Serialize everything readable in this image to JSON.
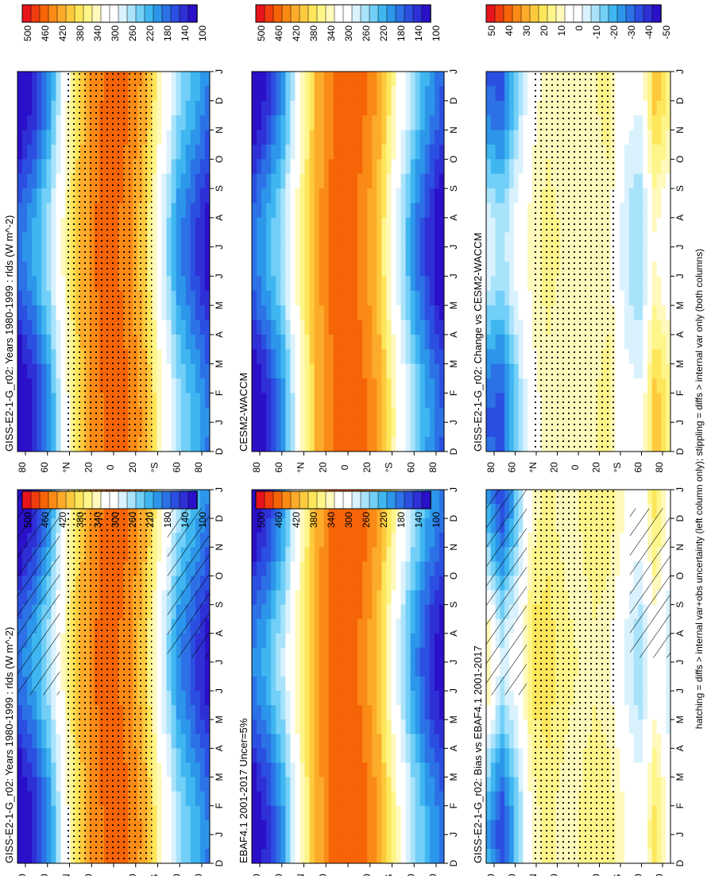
{
  "footer_note": "hatching = diffs > internal var+obs uncertainty (left column only); stippling = diffs > internal var only (both columns)",
  "colorbars": {
    "absolute": {
      "labels": [
        "500",
        "460",
        "420",
        "380",
        "340",
        "300",
        "260",
        "220",
        "180",
        "140",
        "100"
      ],
      "colors": [
        "#e8141c",
        "#f03c0e",
        "#f66408",
        "#fa8a16",
        "#fdab2a",
        "#fdca3e",
        "#fde65a",
        "#fef58a",
        "#fff9bc",
        "#ffffff",
        "#ffffff",
        "#d9f2fd",
        "#a9e3fb",
        "#72cff7",
        "#3fb6f0",
        "#2c96ea",
        "#2c72e6",
        "#2b4fe0",
        "#2f2fd6",
        "#2a10c8"
      ]
    },
    "difference": {
      "labels": [
        "50",
        "40",
        "30",
        "20",
        "10",
        "0",
        "-10",
        "-20",
        "-30",
        "-40",
        "-50"
      ],
      "colors": [
        "#e8141c",
        "#f03c0e",
        "#f66408",
        "#fa8a16",
        "#fdab2a",
        "#fdca3e",
        "#fde65a",
        "#fef58a",
        "#fff9bc",
        "#ffffff",
        "#ffffff",
        "#d9f2fd",
        "#a9e3fb",
        "#72cff7",
        "#3fb6f0",
        "#2c96ea",
        "#2c72e6",
        "#2b4fe0",
        "#2f2fd6",
        "#2a10c8"
      ]
    }
  },
  "chart_data": [
    {
      "type": "heatmap",
      "title": "GISS-E2-1-G_r02: Years 1980-1999 : rlds (W m^-2)",
      "months": [
        "D",
        "J",
        "F",
        "M",
        "A",
        "M",
        "J",
        "J",
        "A",
        "S",
        "O",
        "N",
        "D",
        "J"
      ],
      "lat_ticks": [
        "80",
        "60",
        "°N",
        "20",
        "0",
        "20",
        "°S",
        "60",
        "80"
      ],
      "colorbar": "absolute",
      "hatching": true,
      "stippling": true,
      "lat_profile": [
        120,
        160,
        220,
        320,
        400,
        440,
        450,
        435,
        395,
        300,
        220,
        180,
        140
      ],
      "seasonal_amp": [
        80,
        70,
        55,
        25,
        10,
        5,
        5,
        10,
        25,
        40,
        50,
        55,
        60
      ]
    },
    {
      "type": "heatmap",
      "title": "GISS-E2-1-G_r02: Years 1980-1999 : rlds (W m^-2)",
      "months": [
        "D",
        "J",
        "F",
        "M",
        "A",
        "M",
        "J",
        "J",
        "A",
        "S",
        "O",
        "N",
        "D",
        "J"
      ],
      "lat_ticks": [
        "80",
        "60",
        "°N",
        "20",
        "0",
        "20",
        "°S",
        "60",
        "80"
      ],
      "colorbar": "absolute",
      "hatching": false,
      "stippling": true,
      "lat_profile": [
        120,
        160,
        220,
        320,
        400,
        440,
        450,
        435,
        395,
        300,
        220,
        180,
        140
      ],
      "seasonal_amp": [
        80,
        70,
        55,
        25,
        10,
        5,
        5,
        10,
        25,
        40,
        50,
        55,
        60
      ]
    },
    {
      "type": "heatmap",
      "title": "EBAF4.1 2001-2017 Uncer=5%",
      "months": [
        "D",
        "J",
        "F",
        "M",
        "A",
        "M",
        "J",
        "J",
        "A",
        "S",
        "O",
        "N",
        "D",
        "J"
      ],
      "lat_ticks": [
        "80",
        "60",
        "°N",
        "20",
        "0",
        "20",
        "°S",
        "60",
        "80"
      ],
      "colorbar": "absolute",
      "hatching": false,
      "stippling": false,
      "lat_profile": [
        130,
        170,
        230,
        330,
        410,
        445,
        455,
        440,
        400,
        310,
        230,
        170,
        130
      ],
      "seasonal_amp": [
        75,
        70,
        55,
        25,
        10,
        5,
        5,
        10,
        25,
        40,
        50,
        55,
        60
      ]
    },
    {
      "type": "heatmap",
      "title": "CESM2-WACCM",
      "months": [
        "D",
        "J",
        "F",
        "M",
        "A",
        "M",
        "J",
        "J",
        "A",
        "S",
        "O",
        "N",
        "D",
        "J"
      ],
      "lat_ticks": [
        "80",
        "60",
        "°N",
        "20",
        "0",
        "20",
        "°S",
        "60",
        "80"
      ],
      "colorbar": "absolute",
      "hatching": false,
      "stippling": false,
      "lat_profile": [
        125,
        165,
        225,
        325,
        405,
        442,
        452,
        438,
        398,
        305,
        225,
        165,
        120
      ],
      "seasonal_amp": [
        80,
        70,
        55,
        25,
        10,
        5,
        5,
        10,
        25,
        40,
        50,
        55,
        60
      ]
    },
    {
      "type": "heatmap",
      "title": "GISS-E2-1-G_r02: Bias vs EBAF4.1 2001-2017",
      "months": [
        "D",
        "J",
        "F",
        "M",
        "A",
        "M",
        "J",
        "J",
        "A",
        "S",
        "O",
        "N",
        "D",
        "J"
      ],
      "lat_ticks": [
        "80",
        "60",
        "°N",
        "20",
        "0",
        "20",
        "°S",
        "60",
        "80"
      ],
      "colorbar": "difference",
      "hatching": true,
      "stippling": true,
      "lat_profile": [
        -5,
        -25,
        -10,
        12,
        15,
        10,
        8,
        12,
        10,
        0,
        -8,
        10,
        -5
      ],
      "seasonal_amp": [
        30,
        25,
        15,
        8,
        5,
        3,
        3,
        5,
        5,
        8,
        10,
        12,
        10
      ]
    },
    {
      "type": "heatmap",
      "title": "GISS-E2-1-G_r02: Change vs CESM2-WACCM",
      "months": [
        "D",
        "J",
        "F",
        "M",
        "A",
        "M",
        "J",
        "J",
        "A",
        "S",
        "O",
        "N",
        "D",
        "J"
      ],
      "lat_ticks": [
        "80",
        "60",
        "°N",
        "20",
        "0",
        "20",
        "°S",
        "60",
        "80"
      ],
      "colorbar": "difference",
      "hatching": false,
      "stippling": true,
      "lat_profile": [
        -20,
        -25,
        -10,
        5,
        10,
        8,
        6,
        8,
        10,
        -5,
        -10,
        15,
        5
      ],
      "seasonal_amp": [
        25,
        20,
        12,
        5,
        3,
        2,
        2,
        3,
        4,
        6,
        10,
        15,
        12
      ]
    }
  ]
}
